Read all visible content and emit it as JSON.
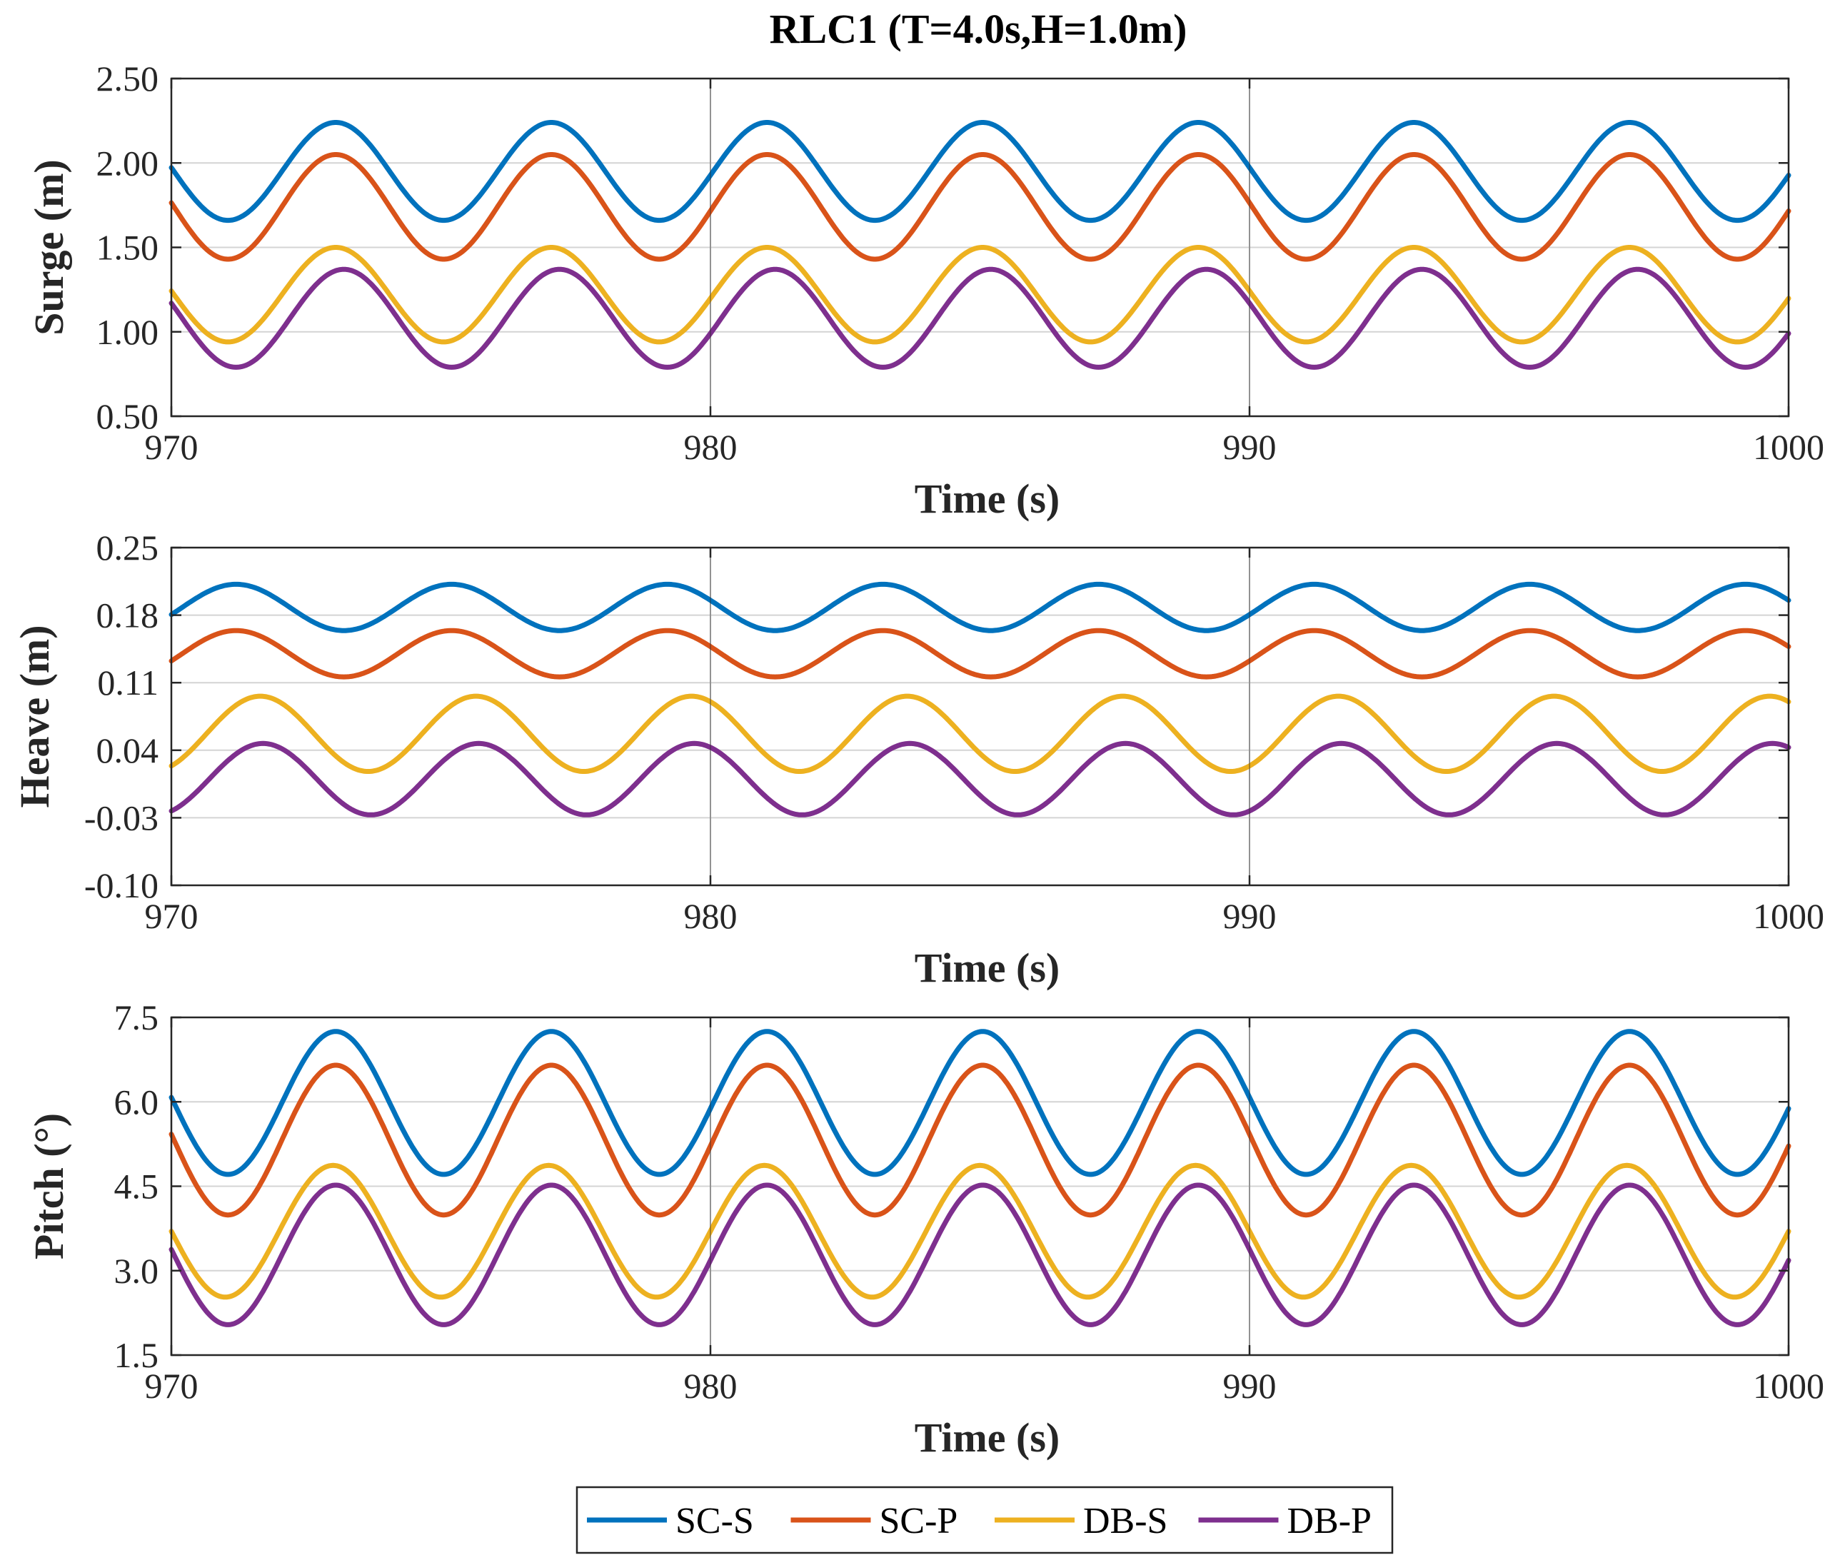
{
  "figure_title": "RLC1 (T=4.0s,H=1.0m)",
  "colors": {
    "SC-S": "#0072BD",
    "SC-P": "#D95319",
    "DB-S": "#EDB120",
    "DB-P": "#7E2F8E"
  },
  "legend": {
    "entries": [
      "SC-S",
      "SC-P",
      "DB-S",
      "DB-P"
    ],
    "placement": "bottom-center"
  },
  "chart_data": [
    {
      "type": "line",
      "title": "RLC1 (T=4.0s,H=1.0m)",
      "xlabel": "Time (s)",
      "ylabel": "Surge (m)",
      "xlim": [
        970,
        1000
      ],
      "ylim": [
        0.5,
        2.5
      ],
      "xticks": [
        970,
        980,
        990,
        1000
      ],
      "xtick_labels": [
        "970",
        "980",
        "990",
        "1000"
      ],
      "yticks": [
        0.5,
        1.0,
        1.5,
        2.0,
        2.5
      ],
      "ytick_labels": [
        "0.50",
        "1.00",
        "1.50",
        "2.00",
        "2.50"
      ],
      "grid": true,
      "period_s": 4.0,
      "series": [
        {
          "name": "SC-S",
          "mean": 1.95,
          "amplitude": 0.29,
          "peak_time": 973.05
        },
        {
          "name": "SC-P",
          "mean": 1.74,
          "amplitude": 0.31,
          "peak_time": 973.05
        },
        {
          "name": "DB-S",
          "mean": 1.22,
          "amplitude": 0.28,
          "peak_time": 973.05
        },
        {
          "name": "DB-P",
          "mean": 1.08,
          "amplitude": 0.29,
          "peak_time": 973.2
        }
      ]
    },
    {
      "type": "line",
      "title": "",
      "xlabel": "Time (s)",
      "ylabel": "Heave (m)",
      "xlim": [
        970,
        1000
      ],
      "ylim": [
        -0.1,
        0.25
      ],
      "xticks": [
        970,
        980,
        990,
        1000
      ],
      "xtick_labels": [
        "970",
        "980",
        "990",
        "1000"
      ],
      "yticks": [
        -0.1,
        -0.03,
        0.04,
        0.11,
        0.18,
        0.25
      ],
      "ytick_labels": [
        "-0.10",
        "-0.03",
        "0.04",
        "0.11",
        "0.18",
        "0.25"
      ],
      "grid": true,
      "period_s": 4.0,
      "series": [
        {
          "name": "SC-S",
          "mean": 0.188,
          "amplitude": 0.024,
          "peak_time": 971.2
        },
        {
          "name": "SC-P",
          "mean": 0.14,
          "amplitude": 0.024,
          "peak_time": 971.2
        },
        {
          "name": "DB-S",
          "mean": 0.057,
          "amplitude": 0.039,
          "peak_time": 971.65
        },
        {
          "name": "DB-P",
          "mean": 0.01,
          "amplitude": 0.037,
          "peak_time": 971.7
        }
      ]
    },
    {
      "type": "line",
      "title": "",
      "xlabel": "Time (s)",
      "ylabel": "Pitch (°)",
      "xlim": [
        970,
        1000
      ],
      "ylim": [
        1.5,
        7.5
      ],
      "xticks": [
        970,
        980,
        990,
        1000
      ],
      "xtick_labels": [
        "970",
        "980",
        "990",
        "1000"
      ],
      "yticks": [
        1.5,
        3.0,
        4.5,
        6.0,
        7.5
      ],
      "ytick_labels": [
        "1.5",
        "3.0",
        "4.5",
        "6.0",
        "7.5"
      ],
      "grid": true,
      "period_s": 4.0,
      "series": [
        {
          "name": "SC-S",
          "mean": 5.98,
          "amplitude": 1.27,
          "peak_time": 973.05
        },
        {
          "name": "SC-P",
          "mean": 5.32,
          "amplitude": 1.33,
          "peak_time": 973.05
        },
        {
          "name": "DB-S",
          "mean": 3.7,
          "amplitude": 1.17,
          "peak_time": 973.0
        },
        {
          "name": "DB-P",
          "mean": 3.28,
          "amplitude": 1.24,
          "peak_time": 973.05
        }
      ]
    }
  ]
}
